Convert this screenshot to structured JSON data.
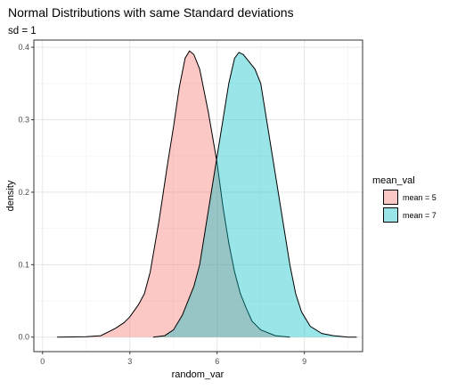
{
  "chart_data": {
    "type": "area",
    "title": "Normal Distributions with same Standard deviations",
    "subtitle": "sd = 1",
    "xlabel": "random_var",
    "ylabel": "density",
    "xlim": [
      -0.3,
      11.0
    ],
    "ylim": [
      -0.02,
      0.41
    ],
    "x_ticks": [
      0,
      3,
      6,
      9
    ],
    "x_tick_labels": [
      "0",
      "3",
      "6",
      "9"
    ],
    "y_ticks": [
      0.0,
      0.1,
      0.2,
      0.3,
      0.4
    ],
    "y_tick_labels": [
      "0.0",
      "0.1",
      "0.2",
      "0.3",
      "0.4"
    ],
    "grid": true,
    "legend": {
      "title": "mean_val",
      "position": "right"
    },
    "series": [
      {
        "name": "mean = 5",
        "color": "#F8766D",
        "points": [
          [
            0.5,
            0.0
          ],
          [
            1.5,
            0.0005
          ],
          [
            2.0,
            0.002
          ],
          [
            2.5,
            0.012
          ],
          [
            2.8,
            0.02
          ],
          [
            3.0,
            0.028
          ],
          [
            3.3,
            0.045
          ],
          [
            3.5,
            0.06
          ],
          [
            3.7,
            0.09
          ],
          [
            4.0,
            0.16
          ],
          [
            4.3,
            0.24
          ],
          [
            4.5,
            0.29
          ],
          [
            4.7,
            0.345
          ],
          [
            4.9,
            0.385
          ],
          [
            5.05,
            0.395
          ],
          [
            5.2,
            0.39
          ],
          [
            5.4,
            0.37
          ],
          [
            5.7,
            0.31
          ],
          [
            6.0,
            0.24
          ],
          [
            6.2,
            0.18
          ],
          [
            6.4,
            0.13
          ],
          [
            6.6,
            0.09
          ],
          [
            6.8,
            0.06
          ],
          [
            7.0,
            0.04
          ],
          [
            7.2,
            0.022
          ],
          [
            7.5,
            0.01
          ],
          [
            8.0,
            0.002
          ],
          [
            8.5,
            0.0
          ]
        ]
      },
      {
        "name": "mean = 7",
        "color": "#00BFC4",
        "points": [
          [
            3.8,
            0.0
          ],
          [
            4.2,
            0.002
          ],
          [
            4.5,
            0.01
          ],
          [
            4.8,
            0.03
          ],
          [
            5.0,
            0.05
          ],
          [
            5.2,
            0.07
          ],
          [
            5.4,
            0.1
          ],
          [
            5.6,
            0.15
          ],
          [
            5.8,
            0.2
          ],
          [
            6.0,
            0.25
          ],
          [
            6.2,
            0.3
          ],
          [
            6.4,
            0.35
          ],
          [
            6.6,
            0.385
          ],
          [
            6.75,
            0.393
          ],
          [
            6.9,
            0.39
          ],
          [
            7.1,
            0.38
          ],
          [
            7.3,
            0.37
          ],
          [
            7.5,
            0.35
          ],
          [
            7.7,
            0.3
          ],
          [
            7.9,
            0.25
          ],
          [
            8.1,
            0.2
          ],
          [
            8.3,
            0.15
          ],
          [
            8.5,
            0.1
          ],
          [
            8.7,
            0.06
          ],
          [
            8.9,
            0.035
          ],
          [
            9.2,
            0.015
          ],
          [
            9.6,
            0.005
          ],
          [
            10.0,
            0.002
          ],
          [
            10.5,
            0.0
          ],
          [
            10.8,
            0.0
          ]
        ]
      }
    ]
  }
}
